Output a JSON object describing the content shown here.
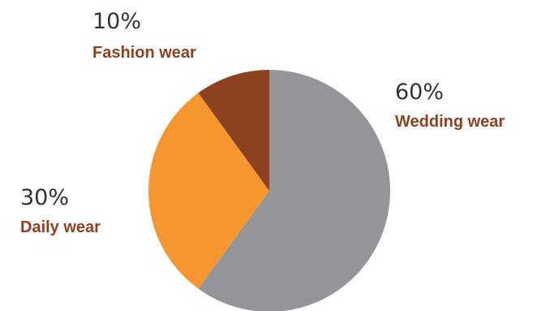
{
  "chart_data": {
    "type": "pie",
    "slices": [
      {
        "label": "Wedding wear",
        "value": 60,
        "value_label": "60%",
        "color": "#939598"
      },
      {
        "label": "Daily wear",
        "value": 30,
        "value_label": "30%",
        "color": "#F7962F"
      },
      {
        "label": "Fashion wear",
        "value": 10,
        "value_label": "10%",
        "color": "#8E4120"
      }
    ],
    "start_angle": "12 o'clock",
    "direction": "clockwise",
    "legend": "none",
    "label_color": "#8E4120",
    "value_color": "#333333"
  }
}
